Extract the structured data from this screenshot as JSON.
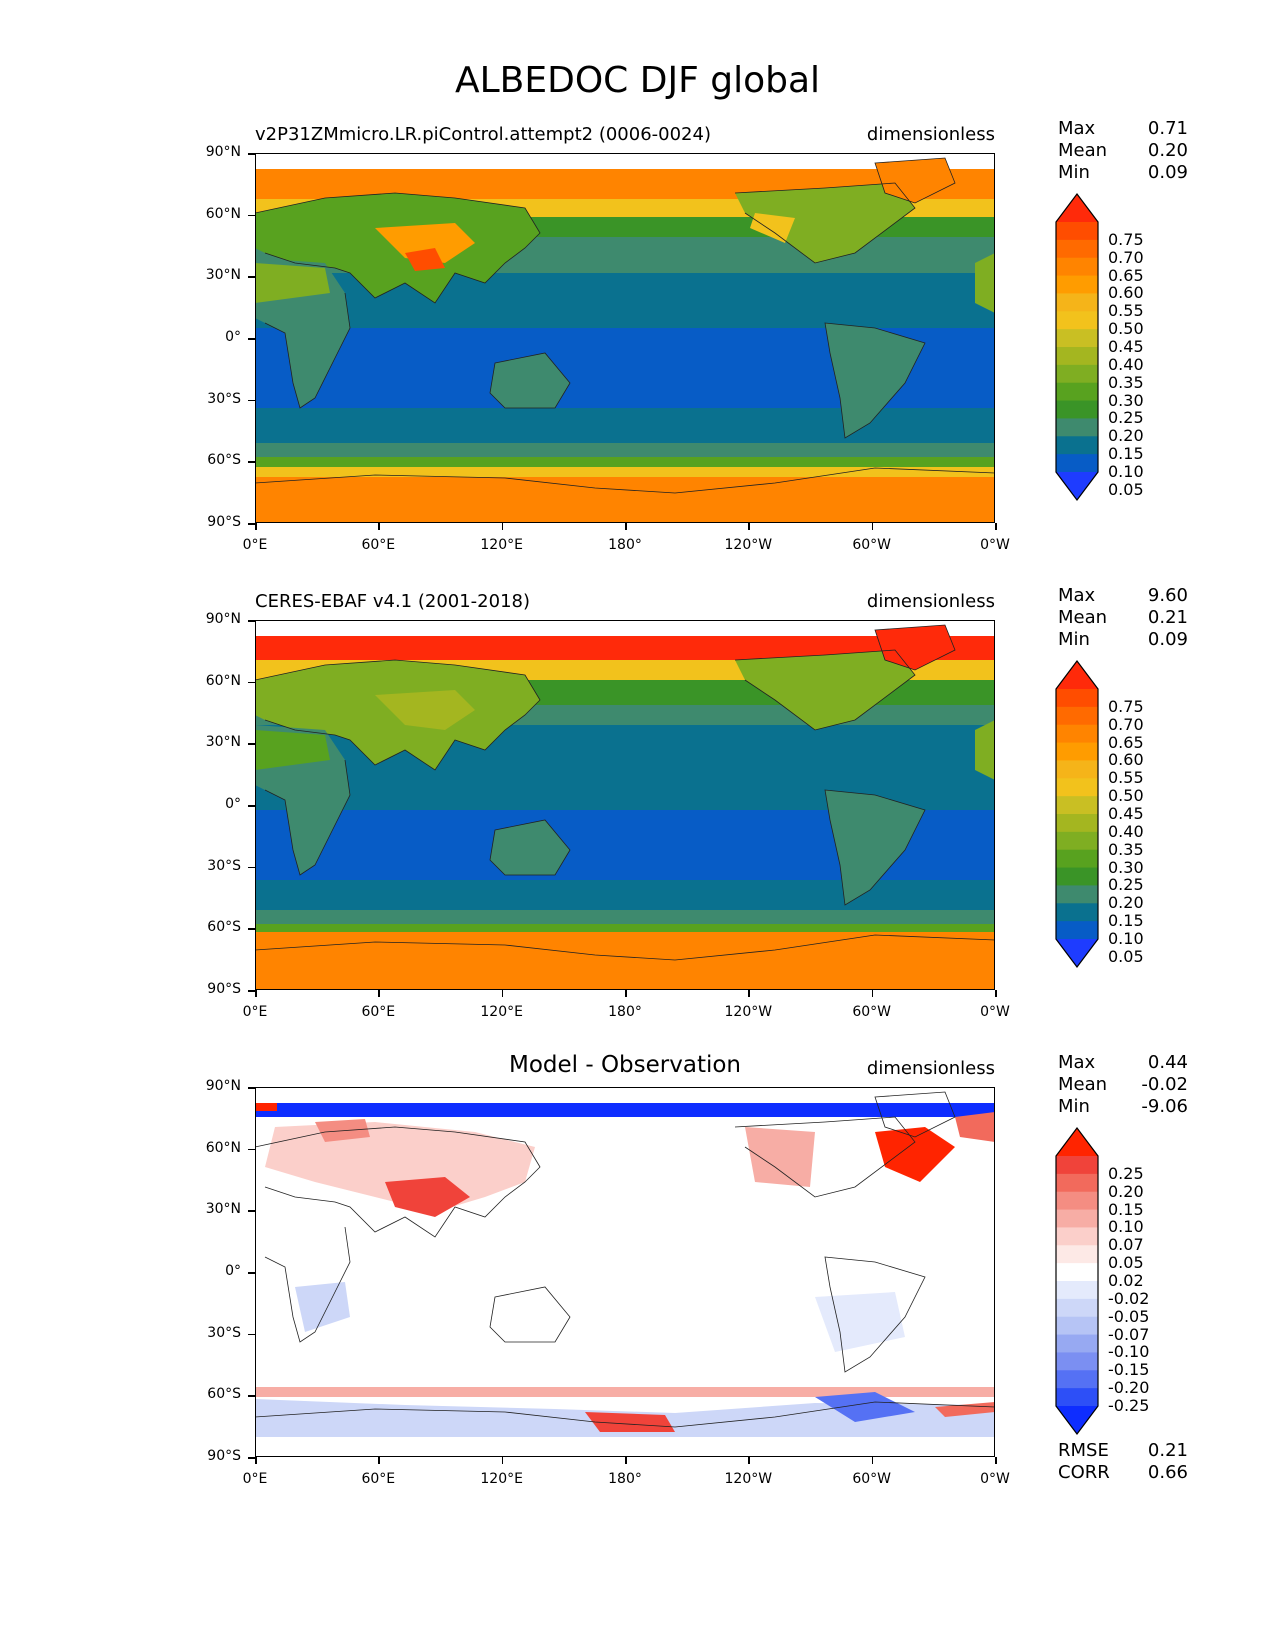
{
  "title": "ALBEDOC DJF global",
  "xticks": [
    "0°E",
    "60°E",
    "120°E",
    "180°",
    "120°W",
    "60°W",
    "0°W"
  ],
  "yticks": [
    "90°N",
    "60°N",
    "30°N",
    "0°",
    "30°S",
    "60°S",
    "90°S"
  ],
  "panels": [
    {
      "title": "v2P31ZMmicro.LR.piControl.attempt2 (0006-0024)",
      "units": "dimensionless",
      "stats": {
        "max_label": "Max",
        "max": "0.71",
        "mean_label": "Mean",
        "mean": "0.20",
        "min_label": "Min",
        "min": "0.09"
      }
    },
    {
      "title": "CERES-EBAF v4.1 (2001-2018)",
      "units": "dimensionless",
      "stats": {
        "max_label": "Max",
        "max": "9.60",
        "mean_label": "Mean",
        "mean": "0.21",
        "min_label": "Min",
        "min": "0.09"
      }
    },
    {
      "title": "Model - Observation",
      "units": "dimensionless",
      "stats": {
        "max_label": "Max",
        "max": "0.44",
        "mean_label": "Mean",
        "mean": "-0.02",
        "min_label": "Min",
        "min": "-9.06"
      }
    }
  ],
  "colorbar_main": {
    "labels": [
      "0.75",
      "0.70",
      "0.65",
      "0.60",
      "0.55",
      "0.50",
      "0.45",
      "0.40",
      "0.35",
      "0.30",
      "0.25",
      "0.20",
      "0.15",
      "0.10",
      "0.05"
    ],
    "colors": [
      "#ff2a0a",
      "#ff4d00",
      "#ff6a00",
      "#ff8400",
      "#ff9c00",
      "#f5b419",
      "#f2c21c",
      "#c9bf23",
      "#a4b620",
      "#7fae22",
      "#58a21f",
      "#3a9427",
      "#3e8a6e",
      "#0a718f",
      "#075cc6",
      "#1e3cff"
    ]
  },
  "colorbar_diff": {
    "labels": [
      "0.25",
      "0.20",
      "0.15",
      "0.10",
      "0.07",
      "0.05",
      "0.02",
      "-0.02",
      "-0.05",
      "-0.07",
      "-0.10",
      "-0.15",
      "-0.20",
      "-0.25"
    ],
    "colors": [
      "#ff2400",
      "#f0433a",
      "#f26a5c",
      "#f48d82",
      "#f7ada5",
      "#fbcfca",
      "#fde9e6",
      "#ffffff",
      "#e4eafc",
      "#cdd7f8",
      "#b6c4f5",
      "#97a9f2",
      "#7b8ff2",
      "#5571f4",
      "#2d4ff7",
      "#0e2dff"
    ]
  },
  "metrics": {
    "rmse_label": "RMSE",
    "rmse": "0.21",
    "corr_label": "CORR",
    "corr": "0.66"
  }
}
